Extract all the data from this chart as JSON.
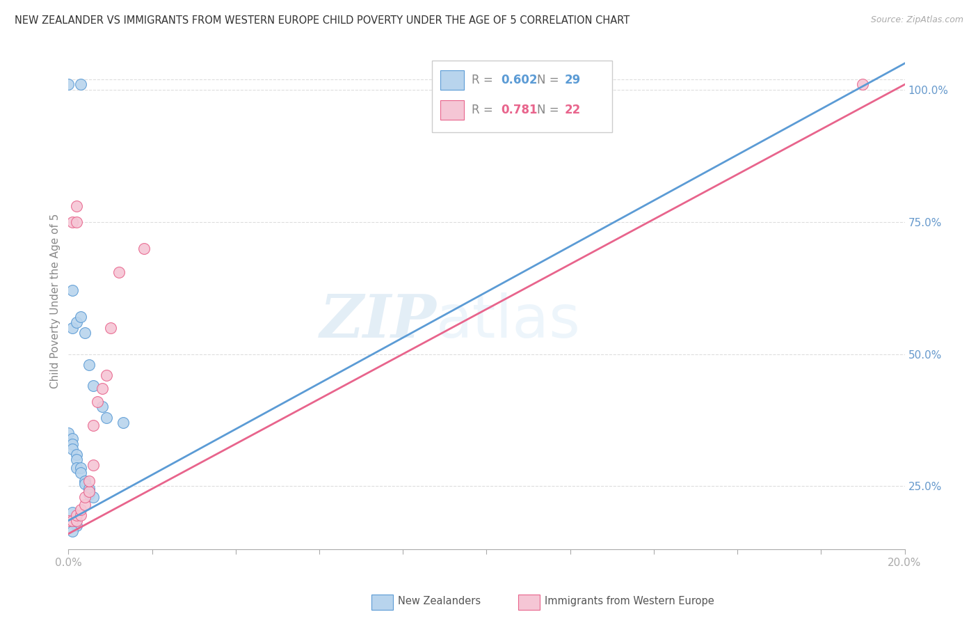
{
  "title": "NEW ZEALANDER VS IMMIGRANTS FROM WESTERN EUROPE CHILD POVERTY UNDER THE AGE OF 5 CORRELATION CHART",
  "source": "Source: ZipAtlas.com",
  "ylabel": "Child Poverty Under the Age of 5",
  "ylabel_right_ticks": [
    "100.0%",
    "75.0%",
    "50.0%",
    "25.0%"
  ],
  "legend_label1": "New Zealanders",
  "legend_label2": "Immigrants from Western Europe",
  "r1": "0.602",
  "n1": "29",
  "r2": "0.781",
  "n2": "22",
  "color_nz": "#b8d4ed",
  "color_imm": "#f5c6d5",
  "line_color_nz": "#5b9bd5",
  "line_color_imm": "#e8648c",
  "watermark_zip": "ZIP",
  "watermark_atlas": "atlas",
  "nz_x": [
    0.001,
    0.001,
    0.002,
    0.003,
    0.004,
    0.005,
    0.006,
    0.008,
    0.009,
    0.013,
    0.0,
    0.001,
    0.001,
    0.001,
    0.002,
    0.002,
    0.002,
    0.003,
    0.003,
    0.004,
    0.004,
    0.005,
    0.005,
    0.006,
    0.003,
    0.0,
    0.001,
    0.002,
    0.001
  ],
  "nz_y": [
    0.62,
    0.55,
    0.56,
    0.57,
    0.54,
    0.48,
    0.44,
    0.4,
    0.38,
    0.37,
    0.35,
    0.34,
    0.33,
    0.32,
    0.31,
    0.3,
    0.285,
    0.285,
    0.275,
    0.26,
    0.255,
    0.245,
    0.235,
    0.23,
    1.01,
    1.01,
    0.2,
    0.175,
    0.165
  ],
  "imm_x": [
    0.0,
    0.001,
    0.002,
    0.002,
    0.003,
    0.003,
    0.004,
    0.004,
    0.005,
    0.005,
    0.006,
    0.006,
    0.007,
    0.008,
    0.009,
    0.01,
    0.012,
    0.018,
    0.001,
    0.002,
    0.002,
    0.19
  ],
  "imm_y": [
    0.185,
    0.185,
    0.185,
    0.195,
    0.195,
    0.205,
    0.215,
    0.23,
    0.24,
    0.26,
    0.29,
    0.365,
    0.41,
    0.435,
    0.46,
    0.55,
    0.655,
    0.7,
    0.75,
    0.75,
    0.78,
    1.01
  ],
  "nz_line_x": [
    0.0,
    0.2
  ],
  "nz_line_y": [
    0.185,
    1.05
  ],
  "imm_line_x": [
    0.0,
    0.2
  ],
  "imm_line_y": [
    0.16,
    1.01
  ],
  "xlim": [
    0.0,
    0.2
  ],
  "ylim": [
    0.13,
    1.07
  ],
  "grid_color": "#dddddd",
  "xtick_positions": [
    0.0,
    0.02,
    0.04,
    0.06,
    0.08,
    0.1,
    0.12,
    0.14,
    0.16,
    0.18,
    0.2
  ]
}
